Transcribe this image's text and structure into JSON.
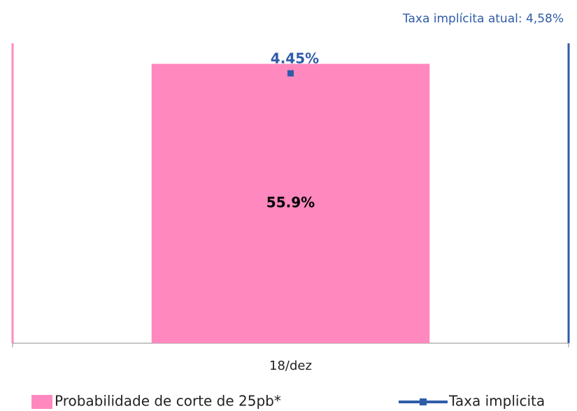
{
  "chart_data": {
    "type": "bar",
    "annotation": "Taxa implícita atual: 4,58%",
    "categories": [
      "18/dez"
    ],
    "series": [
      {
        "name": "Probabilidade de corte de 25pb*",
        "type": "bar",
        "color": "#ff88bf",
        "values": [
          55.9
        ],
        "value_labels": [
          "55.9%"
        ]
      },
      {
        "name": "Taxa implicita",
        "type": "line",
        "axis": "y2",
        "color": "#2f5ca8",
        "values": [
          4.45
        ],
        "value_labels": [
          "4.45%"
        ]
      }
    ],
    "ylim": [
      0,
      60
    ],
    "y2lim": [
      4.0,
      4.5
    ],
    "grid": false
  }
}
